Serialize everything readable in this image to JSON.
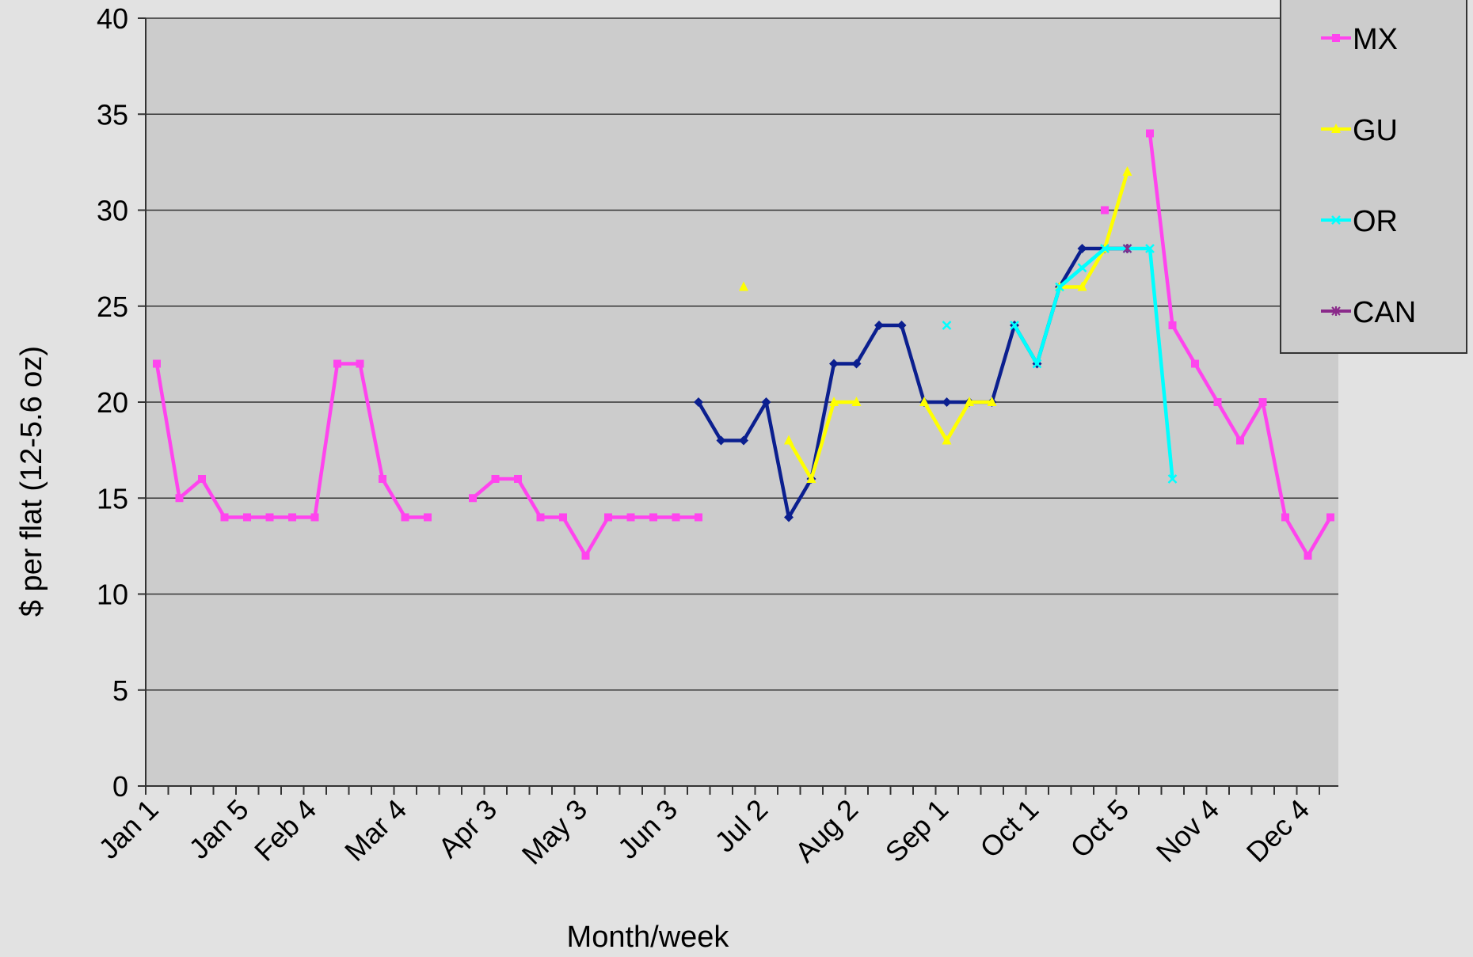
{
  "chart_data": {
    "type": "line",
    "title": "",
    "xlabel": "Month/week",
    "ylabel": "$ per flat (12-5.6 oz)",
    "ylim": [
      0,
      40
    ],
    "yticks": [
      0,
      5,
      10,
      15,
      20,
      25,
      30,
      35,
      40
    ],
    "grid": true,
    "legend_position": "top-right",
    "x_tick_labels": [
      {
        "week": 1,
        "label": "Jan 1"
      },
      {
        "week": 5,
        "label": "Jan 5"
      },
      {
        "week": 8,
        "label": "Feb 4"
      },
      {
        "week": 12,
        "label": "Mar 4"
      },
      {
        "week": 16,
        "label": "Apr 3"
      },
      {
        "week": 20,
        "label": "May 3"
      },
      {
        "week": 24,
        "label": "Jun 3"
      },
      {
        "week": 28,
        "label": "Jul 2"
      },
      {
        "week": 32,
        "label": "Aug 2"
      },
      {
        "week": 36,
        "label": "Sep 1"
      },
      {
        "week": 40,
        "label": "Oct 1"
      },
      {
        "week": 44,
        "label": "Oct 5"
      },
      {
        "week": 48,
        "label": "Nov 4"
      },
      {
        "week": 52,
        "label": "Dec 4"
      }
    ],
    "series": [
      {
        "name": "",
        "color": "#0b1f8f",
        "marker": "diamond",
        "in_legend": false,
        "points": [
          [
            25,
            20
          ],
          [
            26,
            18
          ],
          [
            27,
            18
          ],
          [
            28,
            20
          ],
          [
            29,
            14
          ],
          [
            30,
            16
          ],
          [
            31,
            22
          ],
          [
            32,
            22
          ],
          [
            33,
            24
          ],
          [
            34,
            24
          ],
          [
            35,
            20
          ],
          [
            36,
            20
          ],
          [
            37,
            20
          ],
          [
            38,
            20
          ],
          [
            39,
            24
          ],
          [
            40,
            22
          ],
          [
            41,
            26
          ],
          [
            42,
            28
          ],
          [
            43,
            28
          ],
          [
            44,
            28
          ]
        ]
      },
      {
        "name": "MX",
        "color": "#ff44ee",
        "marker": "square",
        "in_legend": true,
        "points": [
          [
            1,
            22
          ],
          [
            2,
            15
          ],
          [
            3,
            16
          ],
          [
            4,
            14
          ],
          [
            5,
            14
          ],
          [
            6,
            14
          ],
          [
            7,
            14
          ],
          [
            8,
            14
          ],
          [
            9,
            22
          ],
          [
            10,
            22
          ],
          [
            11,
            16
          ],
          [
            12,
            14
          ],
          [
            13,
            14
          ],
          [
            null,
            null
          ],
          [
            15,
            15
          ],
          [
            16,
            16
          ],
          [
            17,
            16
          ],
          [
            18,
            14
          ],
          [
            19,
            14
          ],
          [
            20,
            12
          ],
          [
            21,
            14
          ],
          [
            22,
            14
          ],
          [
            23,
            14
          ],
          [
            24,
            14
          ],
          [
            25,
            14
          ],
          [
            null,
            null
          ],
          [
            43,
            30
          ],
          [
            null,
            null
          ],
          [
            45,
            34
          ],
          [
            46,
            24
          ],
          [
            47,
            22
          ],
          [
            48,
            20
          ],
          [
            49,
            18
          ],
          [
            50,
            20
          ],
          [
            51,
            14
          ],
          [
            52,
            12
          ],
          [
            53,
            14
          ]
        ]
      },
      {
        "name": "GU",
        "color": "#ffff00",
        "marker": "triangle",
        "in_legend": true,
        "points": [
          [
            27,
            26
          ],
          [
            null,
            null
          ],
          [
            29,
            18
          ],
          [
            30,
            16
          ],
          [
            31,
            20
          ],
          [
            32,
            20
          ],
          [
            null,
            null
          ],
          [
            35,
            20
          ],
          [
            36,
            18
          ],
          [
            37,
            20
          ],
          [
            38,
            20
          ],
          [
            null,
            null
          ],
          [
            41,
            26
          ],
          [
            42,
            26
          ],
          [
            43,
            28
          ],
          [
            44,
            32
          ]
        ]
      },
      {
        "name": "OR",
        "color": "#00ffff",
        "marker": "x",
        "in_legend": true,
        "points": [
          [
            36,
            24
          ],
          [
            null,
            null
          ],
          [
            39,
            24
          ],
          [
            40,
            22
          ],
          [
            41,
            26
          ],
          [
            42,
            27
          ],
          [
            43,
            28
          ],
          [
            44,
            28
          ],
          [
            45,
            28
          ],
          [
            46,
            16
          ]
        ]
      },
      {
        "name": "CAN",
        "color": "#8a2a8a",
        "marker": "star",
        "in_legend": true,
        "points": [
          [
            44,
            28
          ]
        ]
      }
    ]
  }
}
